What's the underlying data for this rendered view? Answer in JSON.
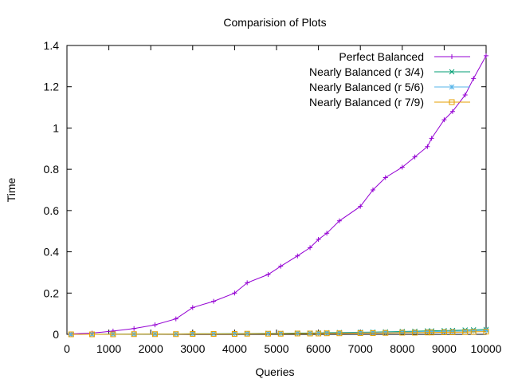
{
  "chart_data": {
    "type": "line",
    "title": "Comparision of Plots",
    "xlabel": "Queries",
    "ylabel": "Time",
    "xlim": [
      0,
      10000
    ],
    "ylim": [
      0,
      1.4
    ],
    "xticks": [
      "0",
      "1000",
      "2000",
      "3000",
      "4000",
      "5000",
      "6000",
      "7000",
      "8000",
      "9000",
      "10000"
    ],
    "yticks": [
      "0",
      "0.2",
      "0.4",
      "0.6",
      "0.8",
      "1",
      "1.2",
      "1.4"
    ],
    "grid": false,
    "legend_position": "top-right",
    "x": [
      100,
      600,
      1100,
      1600,
      2100,
      2600,
      3000,
      3500,
      4000,
      4300,
      4800,
      5100,
      5500,
      5800,
      6000,
      6200,
      6500,
      7000,
      7300,
      7600,
      8000,
      8300,
      8600,
      8700,
      9000,
      9200,
      9500,
      9700,
      10000
    ],
    "series": [
      {
        "name": "Perfect Balanced",
        "color": "#9400d3",
        "marker": "plus",
        "values": [
          0.002,
          0.006,
          0.016,
          0.028,
          0.046,
          0.075,
          0.13,
          0.16,
          0.2,
          0.25,
          0.29,
          0.33,
          0.38,
          0.42,
          0.46,
          0.49,
          0.55,
          0.62,
          0.7,
          0.76,
          0.81,
          0.86,
          0.91,
          0.95,
          1.04,
          1.08,
          1.16,
          1.24,
          1.35
        ]
      },
      {
        "name": "Nearly Balanced (r 3/4)",
        "color": "#009e73",
        "marker": "cross",
        "values": [
          0.0,
          0.0,
          0.001,
          0.001,
          0.002,
          0.002,
          0.003,
          0.003,
          0.004,
          0.004,
          0.005,
          0.005,
          0.006,
          0.006,
          0.007,
          0.008,
          0.009,
          0.01,
          0.011,
          0.012,
          0.014,
          0.015,
          0.017,
          0.017,
          0.018,
          0.019,
          0.021,
          0.022,
          0.024
        ]
      },
      {
        "name": "Nearly Balanced (r 5/6)",
        "color": "#56b4e9",
        "marker": "star",
        "values": [
          0.0,
          0.0,
          0.001,
          0.001,
          0.001,
          0.002,
          0.002,
          0.003,
          0.003,
          0.003,
          0.004,
          0.004,
          0.005,
          0.005,
          0.006,
          0.006,
          0.007,
          0.008,
          0.009,
          0.01,
          0.011,
          0.012,
          0.013,
          0.013,
          0.014,
          0.015,
          0.016,
          0.017,
          0.019
        ]
      },
      {
        "name": "Nearly Balanced (r 7/9)",
        "color": "#e69f00",
        "marker": "square",
        "values": [
          0.0,
          0.0,
          0.0,
          0.001,
          0.001,
          0.001,
          0.002,
          0.002,
          0.002,
          0.003,
          0.003,
          0.003,
          0.004,
          0.004,
          0.004,
          0.005,
          0.005,
          0.006,
          0.006,
          0.007,
          0.008,
          0.008,
          0.009,
          0.009,
          0.01,
          0.01,
          0.011,
          0.012,
          0.013
        ]
      }
    ]
  }
}
